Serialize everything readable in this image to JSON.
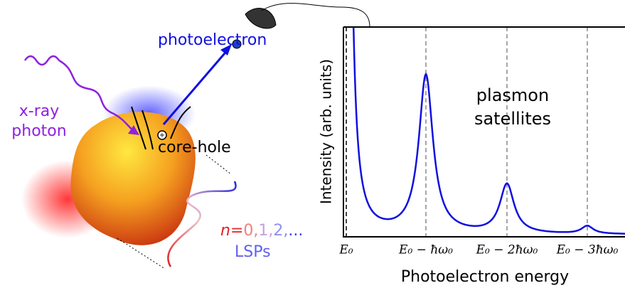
{
  "illustration": {
    "photoelectron_label": "photoelectron",
    "xray_label": [
      "x-ray",
      "photon"
    ],
    "core_hole_label": "core-hole",
    "mode_index": "n",
    "equals": "=",
    "mode_numbers": [
      "0,",
      "1,",
      "2,",
      "..."
    ],
    "lsp_label": "LSPs"
  },
  "spectrum": {
    "annotation": [
      "plasmon",
      "satellites"
    ],
    "y_label": "Intensity  (arb. units)",
    "x_label": "Photoelectron energy",
    "x_tick_labels": [
      "E₀",
      "E₀ − ħω₀",
      "E₀ − 2ħω₀",
      "E₀ − 3ħω₀"
    ]
  }
}
